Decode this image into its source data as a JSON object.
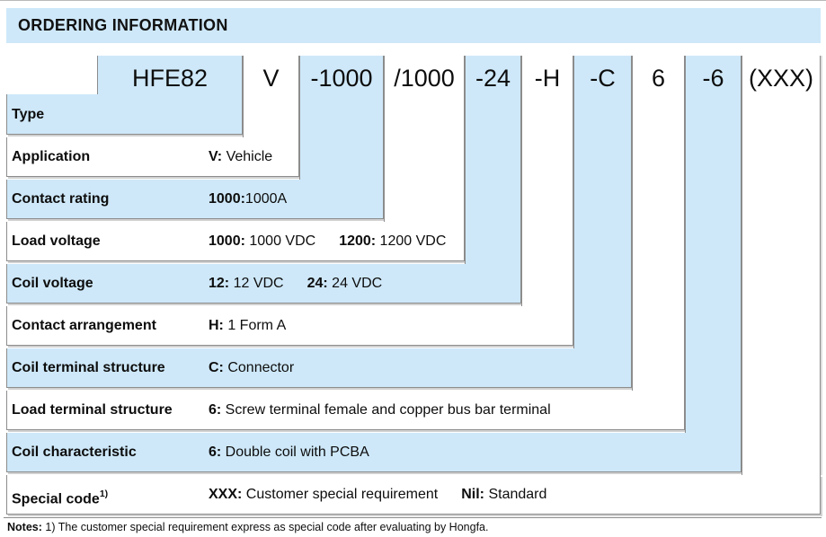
{
  "header": {
    "title": "ORDERING INFORMATION"
  },
  "colors": {
    "accent_blue": "#cee8f9"
  },
  "rows": [
    {
      "code": "HFE82",
      "label": "Type",
      "values": []
    },
    {
      "code": "V",
      "label": "Application",
      "values": [
        {
          "c": "V:",
          "d": " Vehicle"
        }
      ]
    },
    {
      "code": "-1000",
      "label": "Contact rating",
      "values": [
        {
          "c": "1000:",
          "d": "1000A"
        }
      ]
    },
    {
      "code": "/1000",
      "label": "Load voltage",
      "values": [
        {
          "c": "1000:",
          "d": " 1000 VDC"
        },
        {
          "c": "1200:",
          "d": " 1200 VDC"
        }
      ]
    },
    {
      "code": "-24",
      "label": "Coil voltage",
      "values": [
        {
          "c": "12:",
          "d": " 12 VDC"
        },
        {
          "c": "24:",
          "d": " 24 VDC"
        }
      ]
    },
    {
      "code": "-H",
      "label": "Contact arrangement",
      "values": [
        {
          "c": "H:",
          "d": " 1 Form A"
        }
      ]
    },
    {
      "code": "-C",
      "label": "Coil terminal structure",
      "values": [
        {
          "c": "C:",
          "d": " Connector"
        }
      ]
    },
    {
      "code": "6",
      "label": "Load terminal structure",
      "values": [
        {
          "c": "6:",
          "d": " Screw terminal female and copper bus bar terminal"
        }
      ]
    },
    {
      "code": "-6",
      "label": "Coil characteristic",
      "values": [
        {
          "c": "6:",
          "d": " Double coil with PCBA"
        }
      ]
    },
    {
      "code": "(XXX)",
      "label": "Special code",
      "label_sup": "1)",
      "values": [
        {
          "c": "XXX:",
          "d": " Customer special requirement"
        },
        {
          "c": "Nil:",
          "d": " Standard"
        }
      ]
    }
  ],
  "notes": {
    "label": "Notes:",
    "text": " 1) The customer special requirement express as special code after evaluating by Hongfa."
  }
}
